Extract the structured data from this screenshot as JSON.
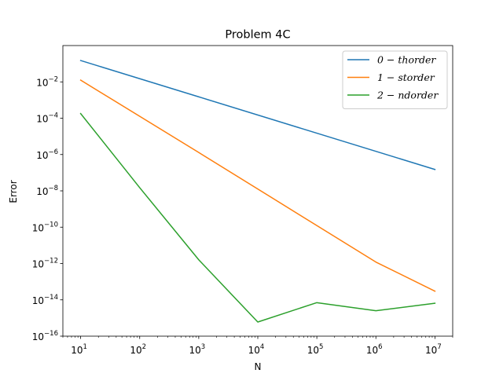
{
  "chart_data": {
    "type": "line",
    "title": "Problem 4C",
    "xlabel": "N",
    "ylabel": "Error",
    "xscale": "log",
    "yscale": "log",
    "xlim": [
      5,
      20000000
    ],
    "ylim": [
      1e-16,
      1
    ],
    "x_ticks": [
      {
        "value": 10,
        "mantissa": "10",
        "exp": "1"
      },
      {
        "value": 100,
        "mantissa": "10",
        "exp": "2"
      },
      {
        "value": 1000,
        "mantissa": "10",
        "exp": "3"
      },
      {
        "value": 10000,
        "mantissa": "10",
        "exp": "4"
      },
      {
        "value": 100000,
        "mantissa": "10",
        "exp": "5"
      },
      {
        "value": 1000000,
        "mantissa": "10",
        "exp": "6"
      },
      {
        "value": 10000000,
        "mantissa": "10",
        "exp": "7"
      }
    ],
    "y_ticks": [
      {
        "value": 0.01,
        "mantissa": "10",
        "exp": "−2"
      },
      {
        "value": 0.0001,
        "mantissa": "10",
        "exp": "−4"
      },
      {
        "value": 1e-06,
        "mantissa": "10",
        "exp": "−6"
      },
      {
        "value": 1e-08,
        "mantissa": "10",
        "exp": "−8"
      },
      {
        "value": 1e-10,
        "mantissa": "10",
        "exp": "−10"
      },
      {
        "value": 1e-12,
        "mantissa": "10",
        "exp": "−12"
      },
      {
        "value": 1e-14,
        "mantissa": "10",
        "exp": "−14"
      },
      {
        "value": 1e-16,
        "mantissa": "10",
        "exp": "−16"
      }
    ],
    "legend_position": "top-right",
    "series": [
      {
        "name": "0 − thorder",
        "color": "#1f77b4",
        "x": [
          10,
          10000000
        ],
        "y": [
          0.15,
          1.5e-07
        ]
      },
      {
        "name": "1 − storder",
        "color": "#ff7f0e",
        "x": [
          10,
          1000,
          1000000,
          10000000
        ],
        "y": [
          0.0125,
          1.3e-06,
          1.2e-12,
          3e-14
        ]
      },
      {
        "name": "2 − ndorder",
        "color": "#2ca02c",
        "x": [
          10,
          100,
          1000,
          10000,
          100000,
          1000000,
          10000000
        ],
        "y": [
          0.00018,
          1.5e-08,
          1.6e-12,
          6e-16,
          7e-15,
          2.5e-15,
          6.5e-15
        ]
      }
    ]
  }
}
